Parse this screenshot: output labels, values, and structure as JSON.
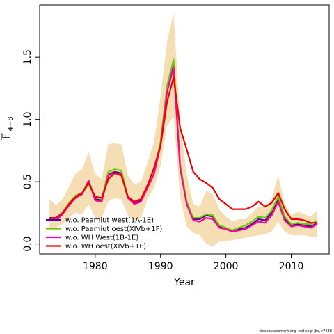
{
  "chart_data": {
    "type": "line",
    "xlabel": "Year",
    "ylabel_main": "F",
    "ylabel_sub": "4−8",
    "xlim": [
      1971.5,
      2015.8
    ],
    "ylim": [
      -0.08,
      1.92
    ],
    "xticks": [
      1980,
      1990,
      2000,
      2010
    ],
    "yticks": [
      0.0,
      0.5,
      1.0,
      1.5
    ],
    "xtick_labels": [
      "1980",
      "1990",
      "2000",
      "2010"
    ],
    "ytick_labels": [
      "0.0",
      "0.5",
      "1.0",
      "1.5"
    ],
    "grid": false,
    "legend_position": "bottom-left",
    "x": [
      1973,
      1974,
      1975,
      1976,
      1977,
      1978,
      1979,
      1980,
      1981,
      1982,
      1983,
      1984,
      1985,
      1986,
      1987,
      1988,
      1989,
      1990,
      1991,
      1992,
      1993,
      1994,
      1995,
      1996,
      1997,
      1998,
      1999,
      2000,
      2001,
      2002,
      2003,
      2004,
      2005,
      2006,
      2007,
      2008,
      2009,
      2010,
      2011,
      2012,
      2013,
      2014
    ],
    "band": {
      "color": "#f5deb3",
      "upper": [
        0.36,
        0.31,
        0.36,
        0.46,
        0.57,
        0.6,
        0.74,
        0.56,
        0.52,
        0.8,
        0.81,
        0.8,
        0.55,
        0.48,
        0.5,
        0.65,
        0.82,
        1.18,
        1.63,
        1.85,
        0.98,
        0.56,
        0.32,
        0.3,
        0.43,
        0.4,
        0.28,
        0.22,
        0.18,
        0.2,
        0.2,
        0.25,
        0.3,
        0.3,
        0.36,
        0.55,
        0.32,
        0.23,
        0.26,
        0.24,
        0.22,
        0.27
      ],
      "lower": [
        0.12,
        0.13,
        0.16,
        0.21,
        0.25,
        0.24,
        0.32,
        0.21,
        0.21,
        0.34,
        0.37,
        0.36,
        0.23,
        0.19,
        0.21,
        0.36,
        0.45,
        0.63,
        0.95,
        1.02,
        0.38,
        0.14,
        0.09,
        0.07,
        0.0,
        -0.02,
        0.02,
        0.02,
        0.03,
        0.04,
        0.05,
        0.06,
        0.07,
        0.08,
        0.1,
        0.18,
        0.1,
        0.07,
        0.07,
        0.07,
        0.06,
        0.06
      ]
    },
    "series": [
      {
        "name": "w.o. Paamiut   west(1A-1E)",
        "color": "#5000a0",
        "values": [
          0.2,
          0.19,
          0.24,
          0.32,
          0.38,
          0.4,
          0.5,
          0.36,
          0.35,
          0.56,
          0.58,
          0.57,
          0.37,
          0.33,
          0.35,
          0.46,
          0.57,
          0.8,
          1.23,
          1.43,
          0.62,
          0.33,
          0.2,
          0.2,
          0.23,
          0.22,
          0.14,
          0.12,
          0.1,
          0.12,
          0.13,
          0.16,
          0.2,
          0.19,
          0.25,
          0.36,
          0.2,
          0.15,
          0.16,
          0.15,
          0.14,
          0.17
        ]
      },
      {
        "name": "w.o. Paamiut   oest(XIVb+1F)",
        "color": "#66cc00",
        "values": [
          0.21,
          0.2,
          0.25,
          0.33,
          0.39,
          0.41,
          0.48,
          0.38,
          0.36,
          0.58,
          0.6,
          0.59,
          0.38,
          0.34,
          0.36,
          0.47,
          0.58,
          0.82,
          1.27,
          1.48,
          0.64,
          0.34,
          0.21,
          0.21,
          0.24,
          0.23,
          0.15,
          0.13,
          0.11,
          0.13,
          0.15,
          0.18,
          0.22,
          0.21,
          0.27,
          0.38,
          0.22,
          0.16,
          0.17,
          0.16,
          0.16,
          0.19
        ]
      },
      {
        "name": "w.o. WH   West(1B-1E)",
        "color": "#ff0099",
        "values": [
          0.2,
          0.2,
          0.24,
          0.31,
          0.37,
          0.4,
          0.51,
          0.35,
          0.34,
          0.55,
          0.57,
          0.56,
          0.37,
          0.32,
          0.34,
          0.45,
          0.56,
          0.79,
          1.22,
          1.42,
          0.61,
          0.32,
          0.19,
          0.18,
          0.21,
          0.2,
          0.13,
          0.12,
          0.1,
          0.11,
          0.12,
          0.15,
          0.18,
          0.17,
          0.23,
          0.34,
          0.19,
          0.14,
          0.15,
          0.14,
          0.13,
          0.16
        ]
      },
      {
        "name": "w.o. WH   oest(XIVb+1F)",
        "color": "#ee0000",
        "values": [
          0.21,
          0.21,
          0.25,
          0.32,
          0.38,
          0.41,
          0.49,
          0.38,
          0.37,
          0.52,
          0.57,
          0.55,
          0.38,
          0.34,
          0.36,
          0.47,
          0.61,
          0.79,
          1.14,
          1.34,
          0.93,
          0.76,
          0.58,
          0.52,
          0.49,
          0.45,
          0.36,
          0.32,
          0.28,
          0.28,
          0.28,
          0.3,
          0.34,
          0.3,
          0.33,
          0.41,
          0.28,
          0.2,
          0.2,
          0.19,
          0.17,
          0.17
        ]
      }
    ]
  },
  "credit": "stockassessment.org, cod-segr-jbo, r7638"
}
